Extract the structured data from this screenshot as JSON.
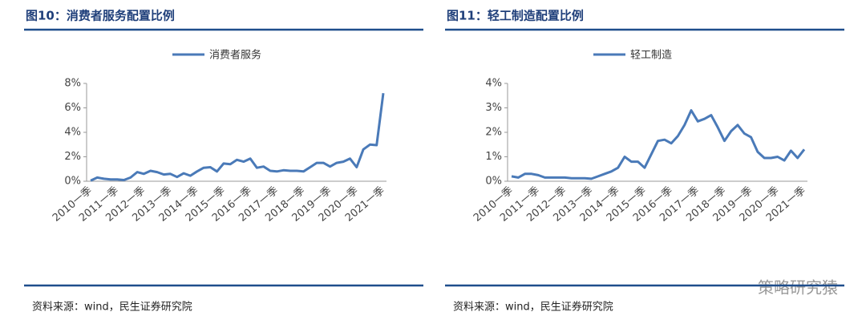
{
  "chart_data": [
    {
      "type": "line",
      "title": "图10：消费者服务配置比例",
      "source": "资料来源：wind，民生证券研究院",
      "legend": "top",
      "categories": [
        "2010一季",
        null,
        null,
        null,
        "2011一季",
        null,
        null,
        null,
        "2012一季",
        null,
        null,
        null,
        "2013一季",
        null,
        null,
        null,
        "2014一季",
        null,
        null,
        null,
        "2015一季",
        null,
        null,
        null,
        "2016一季",
        null,
        null,
        null,
        "2017一季",
        null,
        null,
        null,
        "2018一季",
        null,
        null,
        null,
        "2019一季",
        null,
        null,
        null,
        "2020一季",
        null,
        null,
        null,
        "2021一季"
      ],
      "series": [
        {
          "name": "消费者服务",
          "color": "#4a7ab8",
          "values": [
            0.05,
            0.3,
            0.2,
            0.15,
            0.15,
            0.1,
            0.3,
            0.75,
            0.6,
            0.85,
            0.75,
            0.55,
            0.6,
            0.35,
            0.65,
            0.45,
            0.8,
            1.1,
            1.15,
            0.8,
            1.45,
            1.4,
            1.75,
            1.6,
            1.85,
            1.1,
            1.2,
            0.85,
            0.8,
            0.9,
            0.85,
            0.85,
            0.8,
            1.15,
            1.5,
            1.5,
            1.2,
            1.5,
            1.6,
            1.85,
            1.15,
            2.6,
            3.0,
            2.95,
            7.2
          ]
        }
      ],
      "ylim": [
        0,
        8
      ],
      "yticks": [
        {
          "value": 0,
          "label": "0%"
        },
        {
          "value": 2,
          "label": "2%"
        },
        {
          "value": 4,
          "label": "4%"
        },
        {
          "value": 6,
          "label": "6%"
        },
        {
          "value": 8,
          "label": "8%"
        }
      ]
    },
    {
      "type": "line",
      "title": "图11：轻工制造配置比例",
      "source": "资料来源：wind，民生证券研究院",
      "legend": "top",
      "categories": [
        "2010一季",
        null,
        null,
        null,
        "2011一季",
        null,
        null,
        null,
        "2012一季",
        null,
        null,
        null,
        "2013一季",
        null,
        null,
        null,
        "2014一季",
        null,
        null,
        null,
        "2015一季",
        null,
        null,
        null,
        "2016一季",
        null,
        null,
        null,
        "2017一季",
        null,
        null,
        null,
        "2018一季",
        null,
        null,
        null,
        "2019一季",
        null,
        null,
        null,
        "2020一季",
        null,
        null,
        null,
        "2021一季"
      ],
      "series": [
        {
          "name": "轻工制造",
          "color": "#4a7ab8",
          "values": [
            0.2,
            0.15,
            0.3,
            0.3,
            0.25,
            0.15,
            0.15,
            0.15,
            0.15,
            0.12,
            0.12,
            0.12,
            0.1,
            0.2,
            0.3,
            0.4,
            0.55,
            1.0,
            0.8,
            0.8,
            0.55,
            1.1,
            1.65,
            1.7,
            1.55,
            1.85,
            2.3,
            2.9,
            2.45,
            2.55,
            2.7,
            2.2,
            1.65,
            2.05,
            2.3,
            1.95,
            1.8,
            1.2,
            0.95,
            0.95,
            1.0,
            0.85,
            1.25,
            0.95,
            1.3
          ]
        }
      ],
      "ylim": [
        0,
        4
      ],
      "yticks": [
        {
          "value": 0,
          "label": "0%"
        },
        {
          "value": 1,
          "label": "1%"
        },
        {
          "value": 2,
          "label": "2%"
        },
        {
          "value": 3,
          "label": "3%"
        },
        {
          "value": 4,
          "label": "4%"
        }
      ]
    }
  ],
  "watermark": "策略研究猿"
}
